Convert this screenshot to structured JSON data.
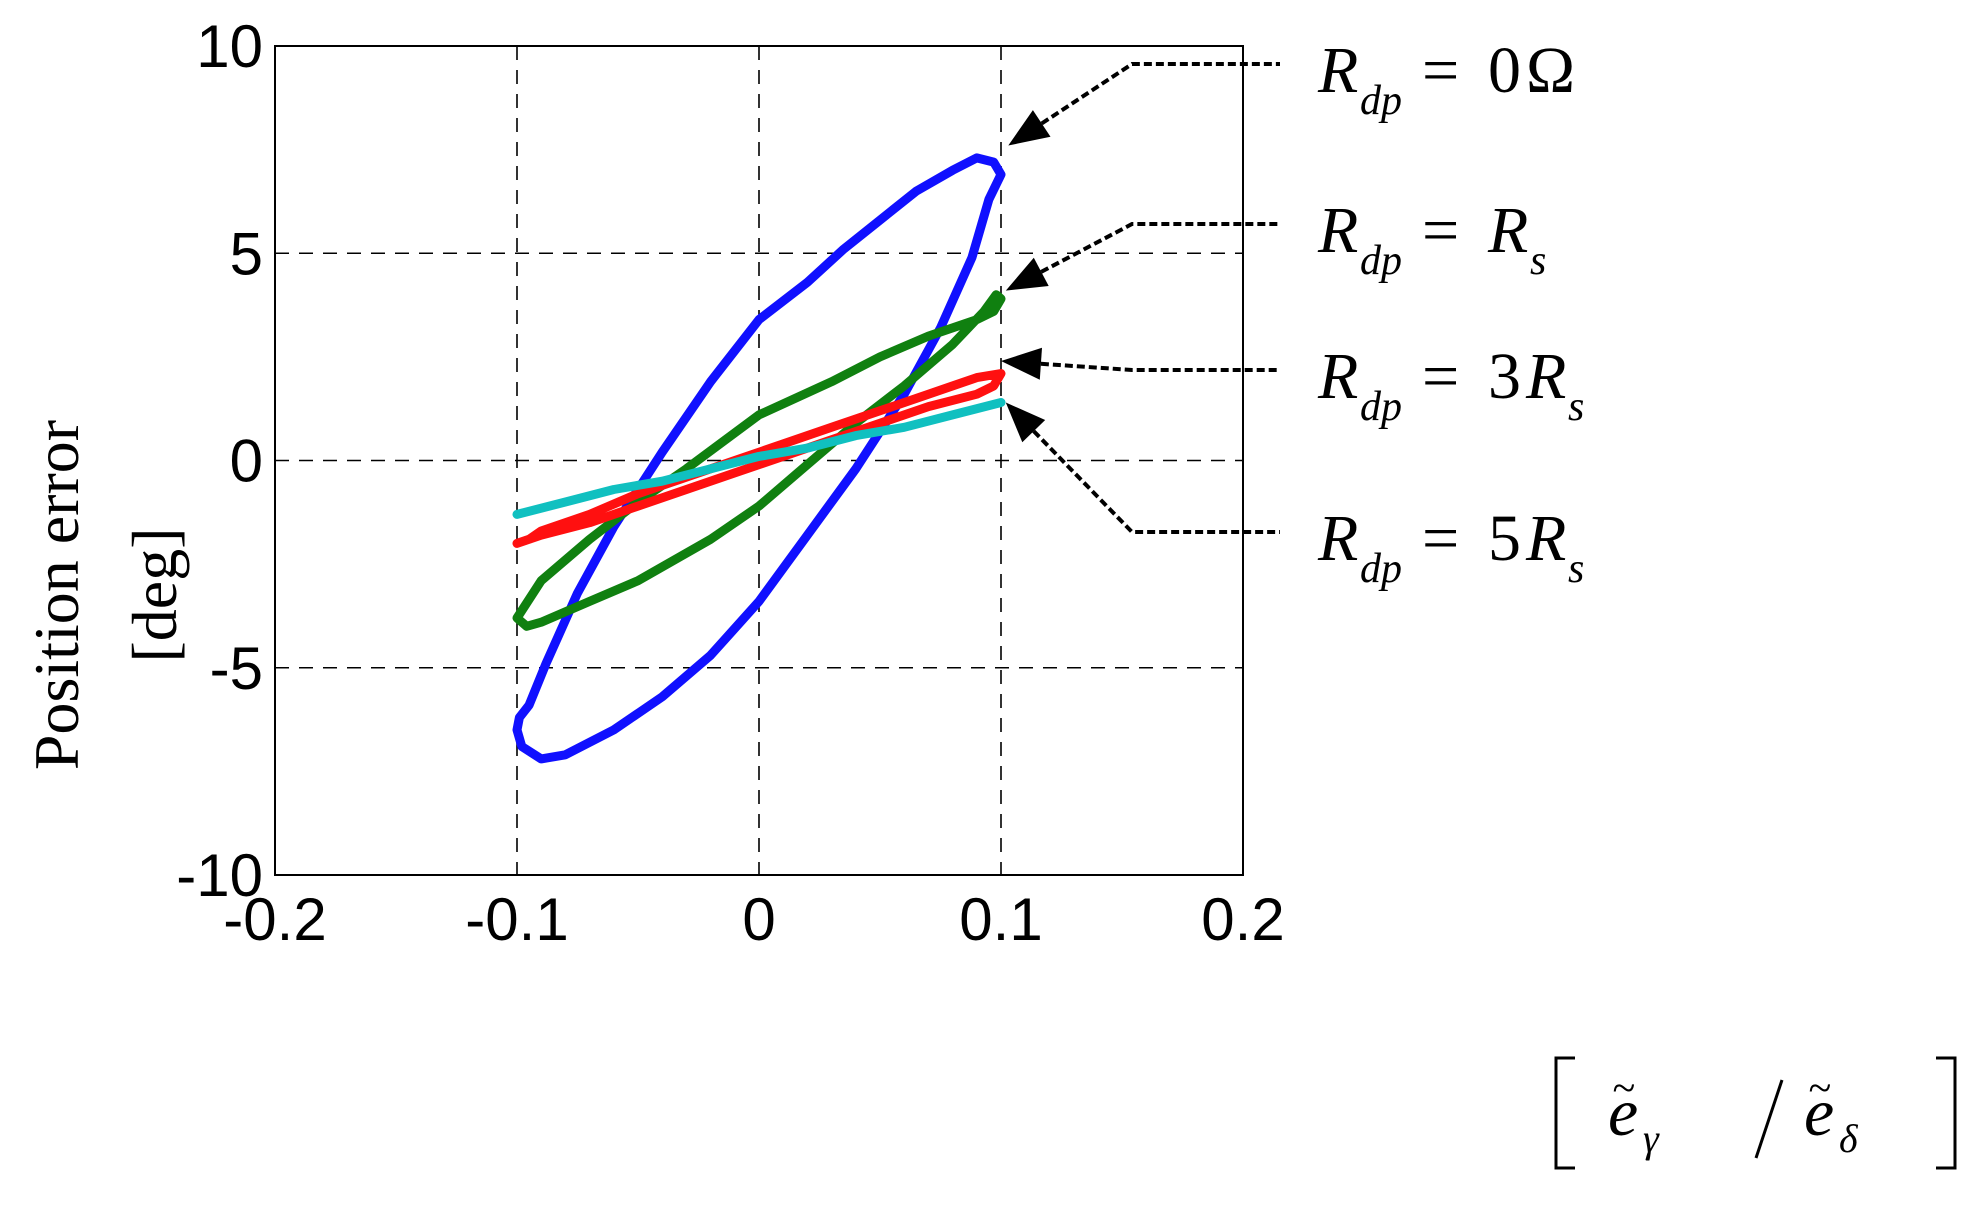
{
  "chart_data": {
    "type": "line",
    "ylabel_lines": [
      "Position error",
      "[deg]"
    ],
    "xlim": [
      -0.2,
      0.2
    ],
    "ylim": [
      -10,
      10
    ],
    "x_ticks": [
      -0.2,
      -0.1,
      0,
      0.1,
      0.2
    ],
    "y_ticks": [
      10,
      5,
      0,
      -5,
      -10
    ],
    "x_tick_labels": [
      "-0.2",
      "-0.1",
      "0",
      "0.1",
      "0.2"
    ],
    "y_tick_labels": [
      "10",
      "5",
      "0",
      "-5",
      "-10"
    ],
    "grid": true,
    "grid_style": "dashed",
    "colors": {
      "blue": "#1010ff",
      "green": "#108010",
      "red": "#ff1010",
      "cyan": "#10c0c0"
    },
    "series": [
      {
        "color": "#1010ff",
        "x": [
          -0.1,
          -0.098,
          -0.09,
          -0.08,
          -0.06,
          -0.04,
          -0.02,
          0,
          0.02,
          0.04,
          0.06,
          0.075,
          0.088,
          0.095,
          0.1,
          0.097,
          0.09,
          0.08,
          0.065,
          0.05,
          0.035,
          0.02,
          0,
          -0.02,
          -0.04,
          -0.06,
          -0.075,
          -0.088,
          -0.095,
          -0.099,
          -0.1
        ],
        "y": [
          -6.5,
          -6.9,
          -7.2,
          -7.1,
          -6.5,
          -5.7,
          -4.7,
          -3.4,
          -1.8,
          -0.2,
          1.6,
          3.2,
          4.9,
          6.3,
          6.9,
          7.2,
          7.3,
          7.0,
          6.5,
          5.8,
          5.1,
          4.3,
          3.4,
          1.9,
          0.2,
          -1.6,
          -3.2,
          -4.9,
          -5.9,
          -6.2,
          -6.5
        ],
        "closed": true
      },
      {
        "color": "#108010",
        "x": [
          -0.1,
          -0.096,
          -0.09,
          -0.07,
          -0.05,
          -0.02,
          0,
          0.02,
          0.04,
          0.06,
          0.08,
          0.093,
          0.098,
          0.1,
          0.097,
          0.09,
          0.07,
          0.05,
          0.03,
          0,
          -0.03,
          -0.05,
          -0.07,
          -0.09,
          -0.1
        ],
        "y": [
          -3.8,
          -4.0,
          -3.9,
          -3.4,
          -2.9,
          -1.9,
          -1.1,
          -0.1,
          0.9,
          1.8,
          2.8,
          3.6,
          4.0,
          3.9,
          3.6,
          3.4,
          3.0,
          2.5,
          1.9,
          1.1,
          -0.2,
          -1.0,
          -1.9,
          -2.9,
          -3.8
        ],
        "closed": true
      },
      {
        "color": "#ff1010",
        "x": [
          -0.1,
          -0.095,
          -0.09,
          -0.07,
          -0.05,
          -0.03,
          -0.01,
          0.01,
          0.03,
          0.05,
          0.07,
          0.09,
          0.1,
          0.097,
          0.09,
          0.07,
          0.05,
          0.03,
          0.01,
          -0.01,
          -0.03,
          -0.05,
          -0.07,
          -0.09,
          -0.1
        ],
        "y": [
          -2.0,
          -1.9,
          -1.7,
          -1.3,
          -0.8,
          -0.4,
          0.0,
          0.4,
          0.8,
          1.2,
          1.6,
          2.0,
          2.1,
          1.8,
          1.6,
          1.3,
          0.9,
          0.5,
          0.1,
          -0.3,
          -0.7,
          -1.1,
          -1.5,
          -1.8,
          -2.0
        ],
        "closed": true
      },
      {
        "color": "#10c0c0",
        "x": [
          -0.1,
          -0.08,
          -0.06,
          -0.04,
          -0.02,
          0,
          0.02,
          0.04,
          0.06,
          0.08,
          0.1
        ],
        "y": [
          -1.3,
          -1.0,
          -0.7,
          -0.5,
          -0.2,
          0.1,
          0.3,
          0.6,
          0.8,
          1.1,
          1.4
        ],
        "closed": false
      }
    ],
    "annotations": [
      {
        "target": [
          0.103,
          7.6
        ],
        "label": {
          "lhs": "R",
          "lhs_sub": "dp",
          "rhs": "0",
          "rhs_sym": "Ω",
          "rhs_sub": ""
        }
      },
      {
        "target": [
          0.102,
          4.1
        ],
        "label": {
          "lhs": "R",
          "lhs_sub": "dp",
          "rhs": "",
          "rhs_sym": "R",
          "rhs_sub": "s"
        }
      },
      {
        "target": [
          0.1,
          2.4
        ],
        "label": {
          "lhs": "R",
          "lhs_sub": "dp",
          "rhs": "3",
          "rhs_sym": "R",
          "rhs_sub": "s"
        }
      },
      {
        "target": [
          0.102,
          1.4
        ],
        "label": {
          "lhs": "R",
          "lhs_sub": "dp",
          "rhs": "5",
          "rhs_sym": "R",
          "rhs_sub": "s"
        }
      }
    ],
    "xlabel_parts": {
      "num": "e",
      "num_sub": "γ",
      "den": "e",
      "den_sub": "δ"
    }
  }
}
